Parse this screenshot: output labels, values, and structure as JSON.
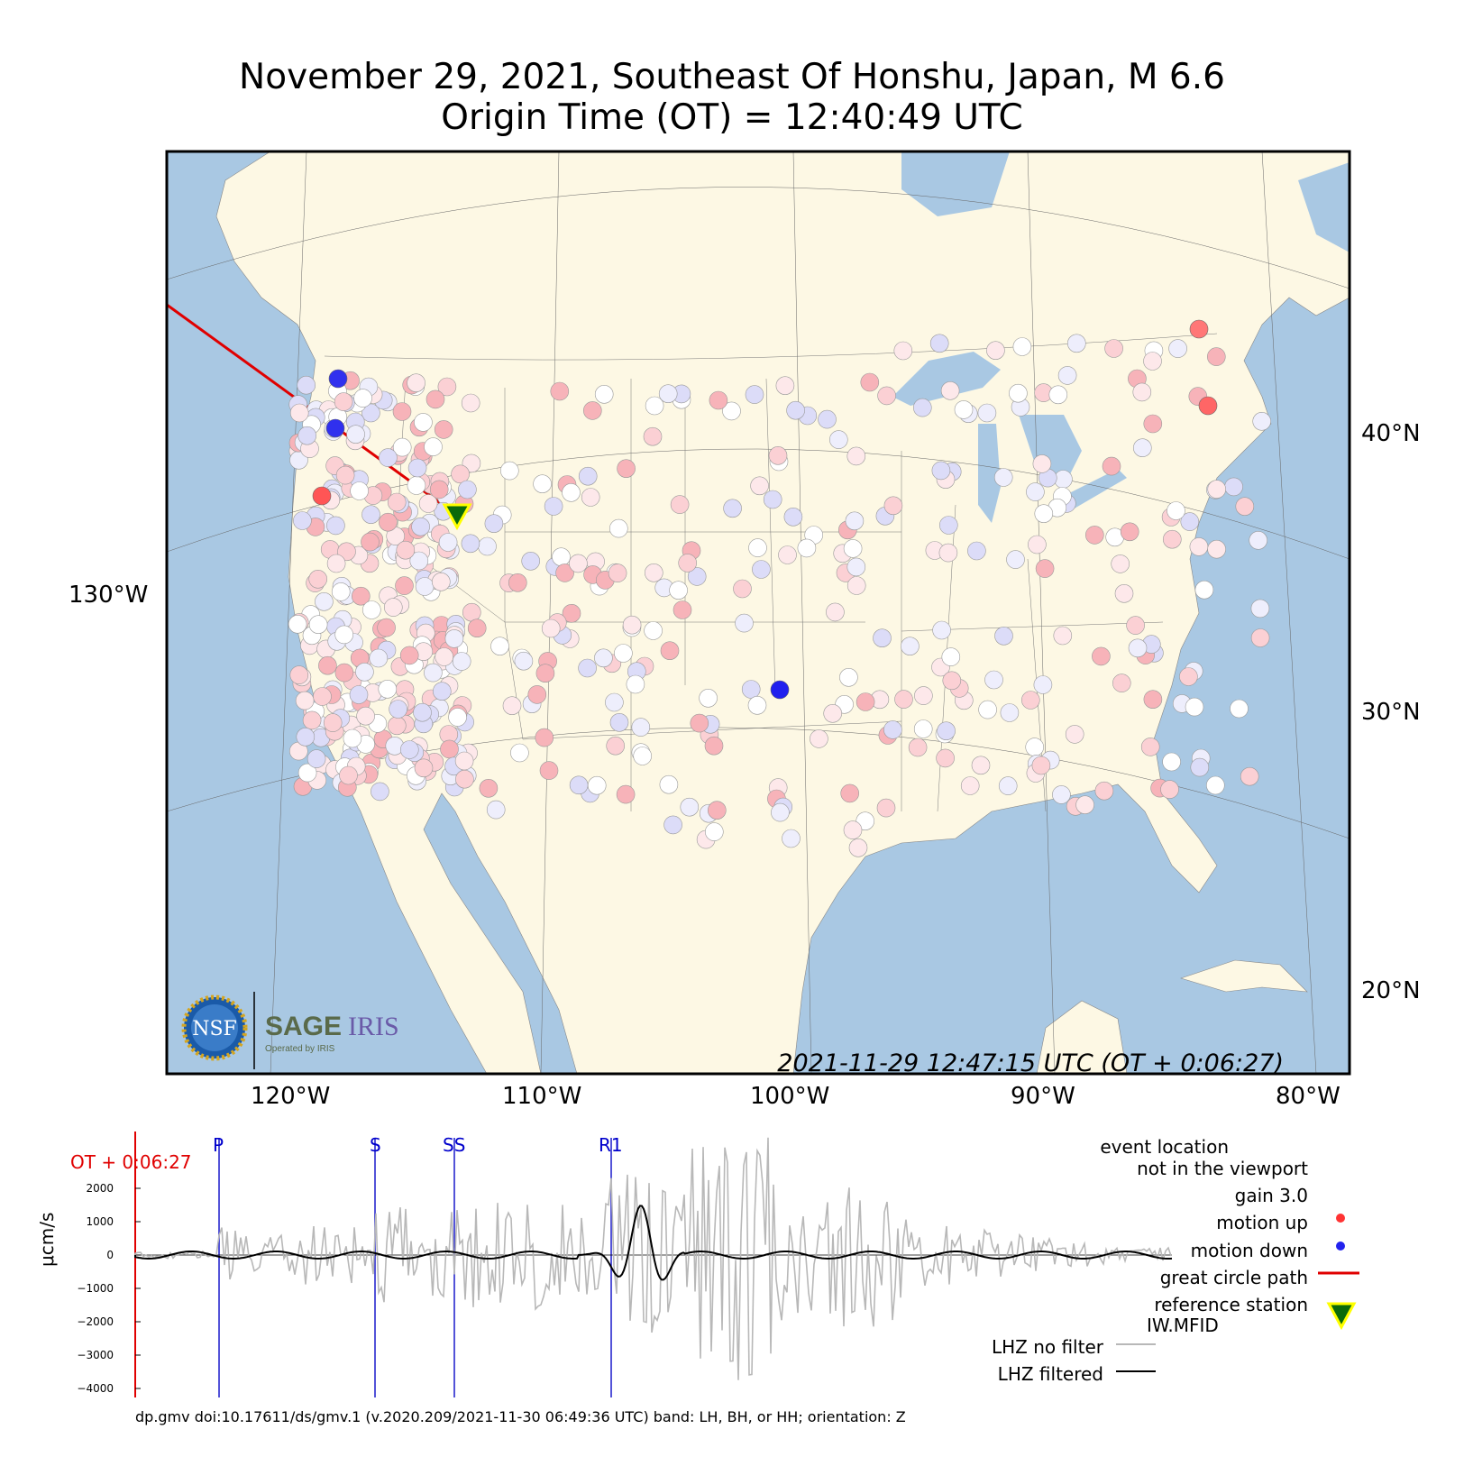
{
  "title_line1": "November 29, 2021, Southeast Of Honshu, Japan, M 6.6",
  "title_line2": "Origin Time (OT) = 12:40:49 UTC",
  "map": {
    "lon_labels": [
      "120°W",
      "110°W",
      "100°W",
      "90°W",
      "80°W"
    ],
    "lat_labels": [
      "40°N",
      "30°N",
      "20°N"
    ],
    "left_label": "130°W",
    "timestamp": "2021-11-29 12:47:15 UTC (OT + 0:06:27)",
    "colors": {
      "land": "#fdf8e4",
      "water": "#a9c8e3",
      "up": "#ff3333",
      "down": "#2222ee",
      "path": "#e00000",
      "station_fill": "#0a6a0a",
      "station_edge": "#ffff00"
    },
    "logo": {
      "nsf": "NSF",
      "sage": "SAGE",
      "iris": "IRIS",
      "operated": "Operated by IRIS"
    }
  },
  "seismogram": {
    "ot_label": "OT + 0:06:27",
    "y_axis_label": "μcm/s",
    "y_ticks": [
      "2000",
      "1000",
      "0",
      "−1000",
      "−2000",
      "−3000",
      "−4000"
    ],
    "phases": [
      "P",
      "S",
      "SS",
      "R1"
    ],
    "footer": "dp.gmv doi:10.17611/ds/gmv.1 (v.2020.209/2021-11-30 06:49:36 UTC) band: LH, BH, or HH; orientation: Z"
  },
  "legend": {
    "line1": "event location",
    "line2": "not in the viewport",
    "gain": "gain  3.0",
    "motion_up": "motion up",
    "motion_down": "motion down",
    "great_circle": "great circle path",
    "reference_station": "reference station",
    "station_code": "IW.MFID",
    "lhz_nofilter": "LHZ no filter",
    "lhz_filtered": "LHZ filtered"
  }
}
